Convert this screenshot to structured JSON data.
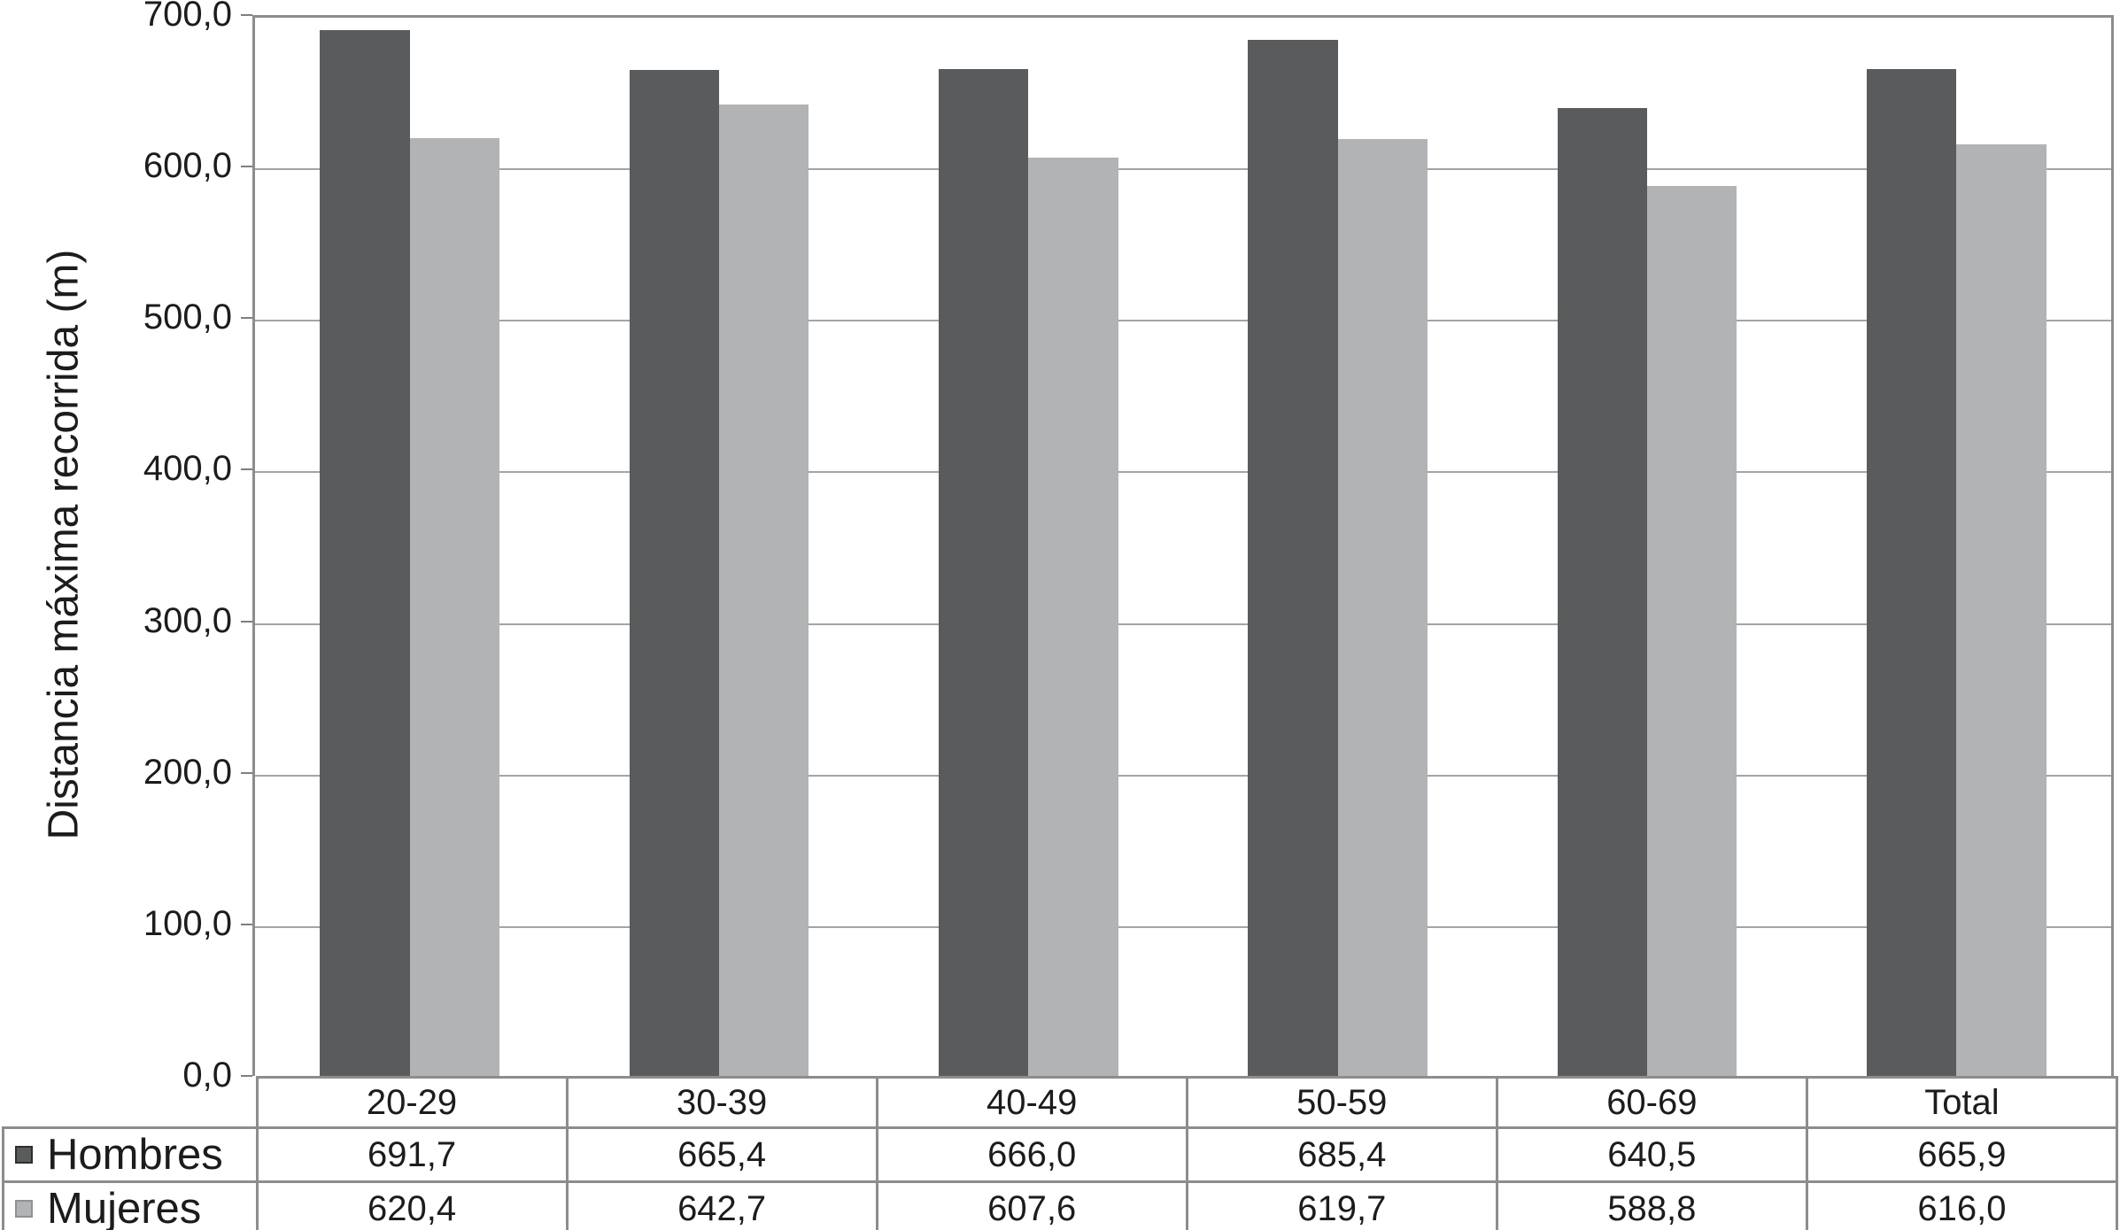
{
  "chart_data": {
    "type": "bar",
    "title": "",
    "xlabel": "",
    "ylabel": "Distancia máxima recorrida (m)",
    "categories": [
      "20-29",
      "30-39",
      "40-49",
      "50-59",
      "60-69",
      "Total"
    ],
    "series": [
      {
        "name": "Hombres",
        "values": [
          691.7,
          665.4,
          666.0,
          685.4,
          640.5,
          665.9
        ],
        "value_labels": [
          "691,7",
          "665,4",
          "666,0",
          "685,4",
          "640,5",
          "665,9"
        ],
        "color": "#595b5d",
        "swatch_border": "#2e2e2e"
      },
      {
        "name": "Mujeres",
        "values": [
          620.4,
          642.7,
          607.6,
          619.7,
          588.8,
          616.0
        ],
        "value_labels": [
          "620,4",
          "642,7",
          "607,6",
          "619,7",
          "588,8",
          "616,0"
        ],
        "color": "#b1b3b5",
        "swatch_border": "#909294"
      }
    ],
    "ylim": [
      0,
      700
    ],
    "ytick_step": 100,
    "ytick_labels": [
      "700,0",
      "600,0",
      "500,0",
      "400,0",
      "300,0",
      "200,0",
      "100,0",
      "0,0"
    ],
    "grid": "horizontal",
    "legend_position": "bottom-table-left-column",
    "decimal_separator": ","
  },
  "colors": {
    "background": "#ffffff",
    "plot_frame": "#8b8d8f",
    "gridline": "#a2a4a6",
    "table_border": "#8b8d8f",
    "text": "#1c1c1c"
  }
}
